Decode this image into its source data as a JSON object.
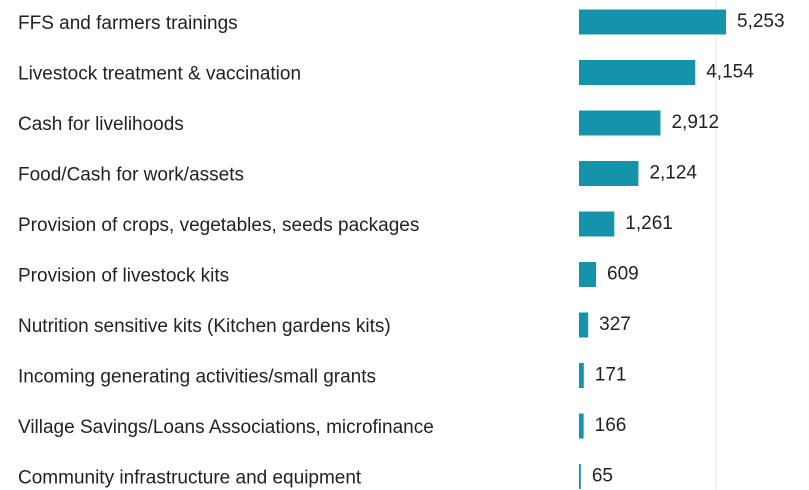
{
  "chart_data": {
    "type": "barh",
    "color": "#1493ab",
    "categories": [
      "FFS and farmers trainings",
      "Livestock treatment & vaccination",
      "Cash for livelihoods",
      "Food/Cash for work/assets",
      "Provision of crops, vegetables, seeds packages",
      "Provision of livestock kits",
      "Nutrition sensitive kits (Kitchen gardens kits)",
      "Incoming generating activities/small grants",
      "Village Savings/Loans Associations, microfinance",
      "Community infrastructure and equipment"
    ],
    "values": [
      5253,
      4154,
      2912,
      2124,
      1261,
      609,
      327,
      171,
      166,
      65
    ],
    "value_labels": [
      "5,253",
      "4,154",
      "2,912",
      "2,124",
      "1,261",
      "609",
      "327",
      "171",
      "166",
      "65"
    ]
  }
}
